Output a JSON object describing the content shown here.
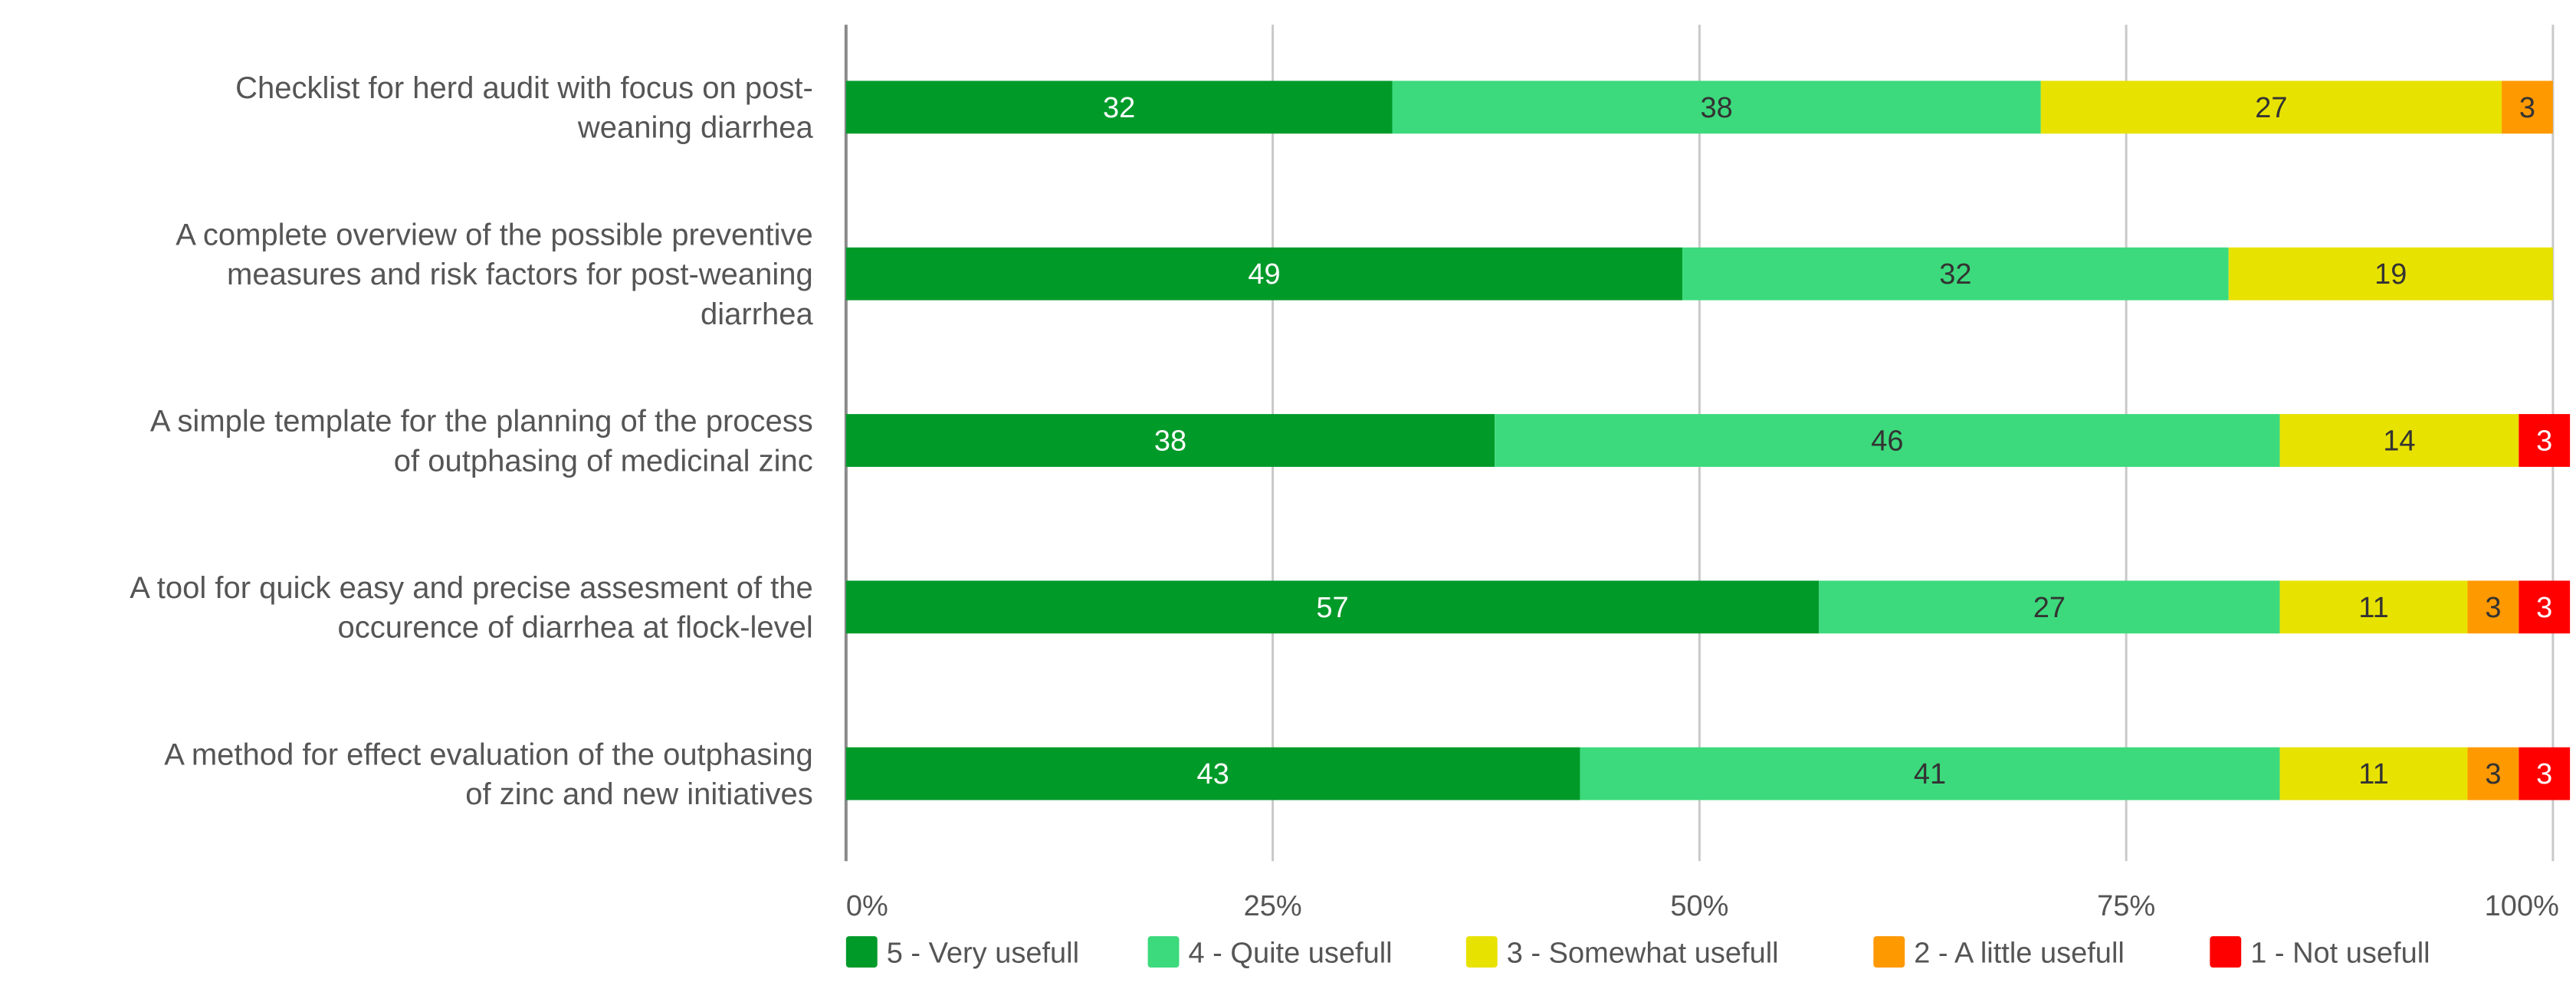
{
  "chart_data": {
    "type": "bar",
    "orientation": "horizontal",
    "stacked": "percent",
    "title": "",
    "xlabel": "",
    "ylabel": "",
    "xlim": [
      0,
      100
    ],
    "x_ticks": [
      "0%",
      "25%",
      "50%",
      "75%",
      "100%"
    ],
    "grid": "vertical",
    "legend_position": "bottom",
    "categories": [
      [
        "Checklist for herd audit with focus on post-",
        "weaning diarrhea"
      ],
      [
        "A complete overview of the possible preventive",
        "measures and risk factors for post-weaning",
        "diarrhea"
      ],
      [
        "A simple template for the planning of the process",
        "of outphasing of medicinal zinc"
      ],
      [
        "A tool for quick easy and precise assesment of the",
        "occurence of diarrhea at flock-level"
      ],
      [
        "A method for effect evaluation of the outphasing",
        "of zinc and new initiatives"
      ]
    ],
    "series": [
      {
        "name": "5 - Very usefull",
        "color": "#009a29",
        "label_color": "#ffffff",
        "values": [
          32,
          49,
          38,
          57,
          43
        ]
      },
      {
        "name": "4 - Quite usefull",
        "color": "#3cda7c",
        "label_color": "#333333",
        "values": [
          38,
          32,
          46,
          27,
          41
        ]
      },
      {
        "name": "3 - Somewhat usefull",
        "color": "#e8e200",
        "label_color": "#333333",
        "values": [
          27,
          19,
          14,
          11,
          11
        ]
      },
      {
        "name": "2 - A little usefull",
        "color": "#ff9900",
        "label_color": "#333333",
        "values": [
          3,
          0,
          0,
          3,
          3
        ]
      },
      {
        "name": "1 - Not usefull",
        "color": "#ff0000",
        "label_color": "#ffffff",
        "values": [
          0,
          0,
          3,
          3,
          3
        ]
      }
    ]
  }
}
